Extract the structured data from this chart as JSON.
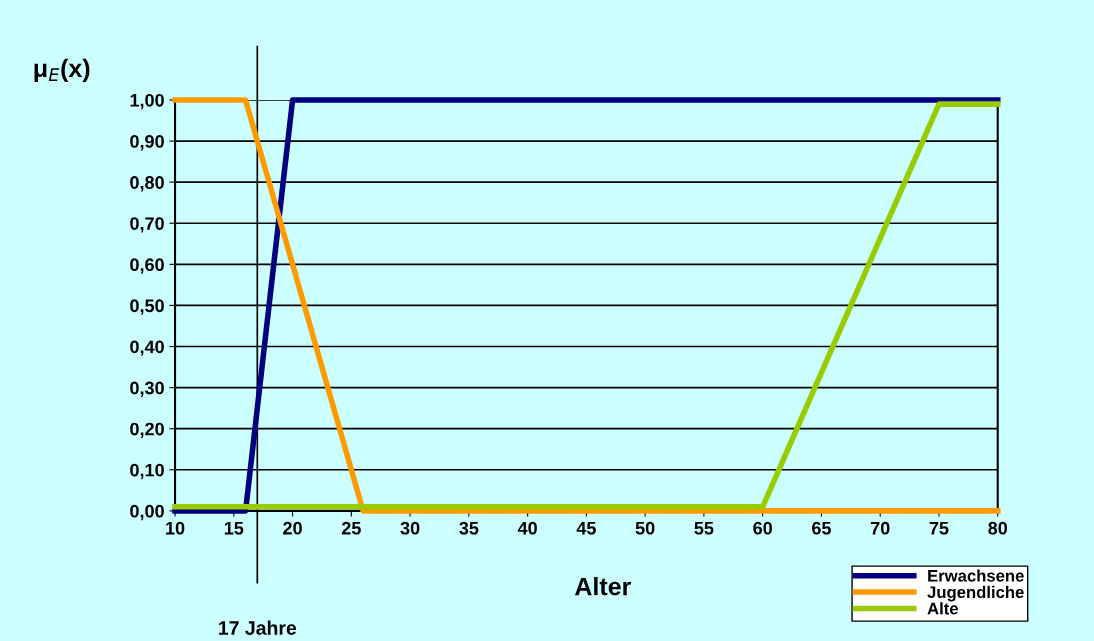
{
  "chart_data": {
    "type": "line",
    "xlabel": "Alter",
    "ylabel": "μ$_{E}$(x)",
    "xlim": [
      10,
      80
    ],
    "xticks": [
      10,
      15,
      20,
      25,
      30,
      35,
      40,
      45,
      50,
      55,
      60,
      65,
      70,
      75,
      80
    ],
    "ylim": [
      0,
      1
    ],
    "yticks": [
      {
        "value": 0,
        "label": "0,00"
      },
      {
        "value": 0.1,
        "label": "0,10"
      },
      {
        "value": 0.2,
        "label": "0,20"
      },
      {
        "value": 0.3,
        "label": "0,30"
      },
      {
        "value": 0.4,
        "label": "0,40"
      },
      {
        "value": 0.5,
        "label": "0,50"
      },
      {
        "value": 0.6,
        "label": "0,60"
      },
      {
        "value": 0.7,
        "label": "0,70"
      },
      {
        "value": 0.8,
        "label": "0,80"
      },
      {
        "value": 0.9,
        "label": "0,90"
      },
      {
        "value": 1,
        "label": "1,00"
      }
    ],
    "grid": "y",
    "legend": "bottom right",
    "marker": "none",
    "line_style": "solid",
    "series": [
      {
        "name": "Erwachsene",
        "color": "#000080",
        "x": [
          10,
          16,
          20,
          80
        ],
        "values": [
          0,
          0,
          1,
          1
        ]
      },
      {
        "name": "Jugendliche",
        "color": "#ff9900",
        "x": [
          10,
          16,
          26,
          80
        ],
        "values": [
          1,
          1,
          0,
          0
        ]
      },
      {
        "name": "Alte",
        "color": "#99cc00",
        "x": [
          10,
          60,
          75,
          80
        ],
        "values": [
          0.01,
          0.01,
          0.99,
          0.99
        ]
      }
    ],
    "ref_lines": [
      {
        "axis": "x",
        "value": 17,
        "label": "17 Jahre",
        "color": "#000000",
        "line_style": "solid"
      }
    ]
  }
}
